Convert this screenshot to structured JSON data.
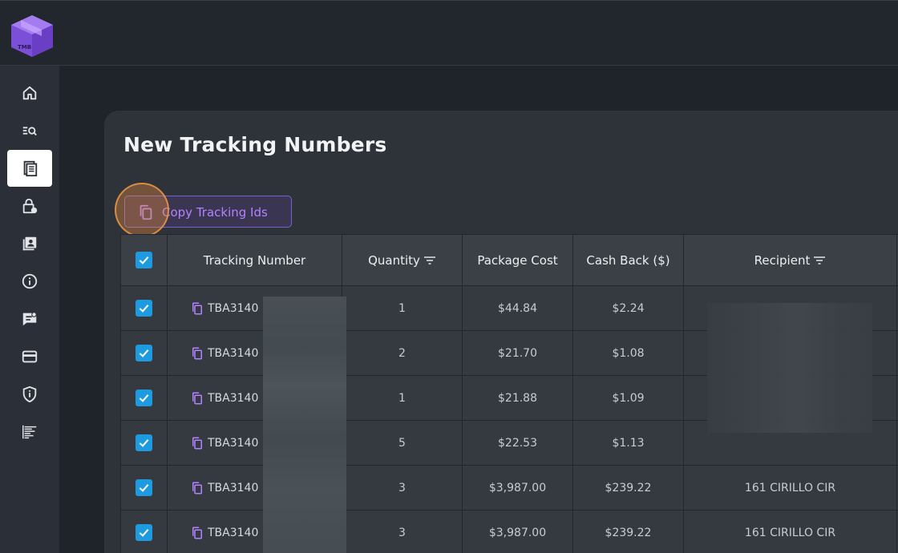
{
  "app": {
    "logo_text": "TMB"
  },
  "sidebar": {
    "items": [
      {
        "icon": "home-icon",
        "active": false
      },
      {
        "icon": "search-list-icon",
        "active": false
      },
      {
        "icon": "document-icon",
        "active": true
      },
      {
        "icon": "lock-clock-icon",
        "active": false
      },
      {
        "icon": "contacts-book-icon",
        "active": false
      },
      {
        "icon": "info-icon",
        "active": false
      },
      {
        "icon": "feedback-icon",
        "active": false
      },
      {
        "icon": "credit-card-icon",
        "active": false
      },
      {
        "icon": "shield-icon",
        "active": false
      },
      {
        "icon": "report-icon",
        "active": false
      }
    ]
  },
  "page": {
    "title": "New Tracking Numbers",
    "copy_button_label": "Copy Tracking Ids"
  },
  "table": {
    "headers": {
      "tracking": "Tracking Number",
      "quantity": "Quantity",
      "package_cost": "Package Cost",
      "cash_back": "Cash Back ($)",
      "recipient": "Recipient"
    },
    "rows": [
      {
        "tracking": "TBA3140",
        "quantity": "1",
        "package_cost": "$44.84",
        "cash_back": "$2.24",
        "recipient": ""
      },
      {
        "tracking": "TBA3140",
        "quantity": "2",
        "package_cost": "$21.70",
        "cash_back": "$1.08",
        "recipient": ""
      },
      {
        "tracking": "TBA3140",
        "quantity": "1",
        "package_cost": "$21.88",
        "cash_back": "$1.09",
        "recipient": ""
      },
      {
        "tracking": "TBA3140",
        "quantity": "5",
        "package_cost": "$22.53",
        "cash_back": "$1.13",
        "recipient": ""
      },
      {
        "tracking": "TBA3140",
        "quantity": "3",
        "package_cost": "$3,987.00",
        "cash_back": "$239.22",
        "recipient": "161 CIRILLO CIR"
      },
      {
        "tracking": "TBA3140",
        "quantity": "3",
        "package_cost": "$3,987.00",
        "cash_back": "$239.22",
        "recipient": "161 CIRILLO CIR"
      }
    ]
  },
  "colors": {
    "accent": "#1e9be0",
    "purple": "#b383ff",
    "highlight": "#e68c3c"
  }
}
